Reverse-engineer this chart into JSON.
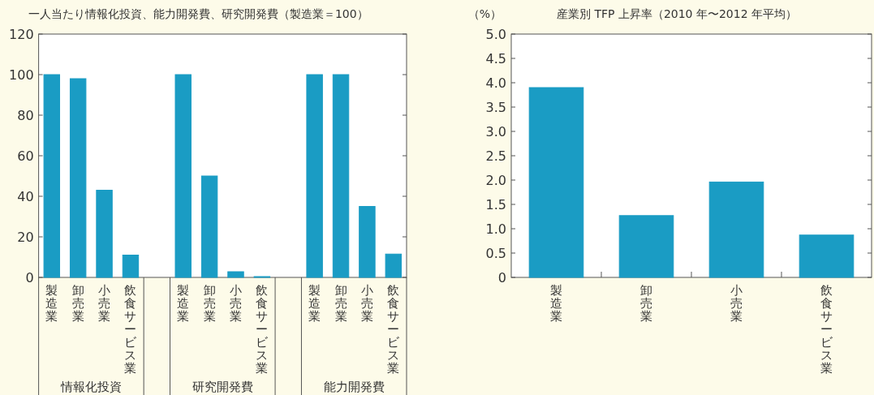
{
  "chart_data": [
    {
      "type": "bar",
      "title": "一人当たり情報化投資、能力開発費、研究開発費（製造業＝100）",
      "categories": [
        "製造業",
        "卸売業",
        "小売業",
        "飲食サービス業",
        null,
        "製造業",
        "卸売業",
        "小売業",
        "飲食サービス業",
        null,
        "製造業",
        "卸売業",
        "小売業",
        "飲食サービス業"
      ],
      "values": [
        100,
        98,
        43,
        11,
        null,
        100,
        50,
        2.8,
        0.4,
        null,
        100,
        100,
        35,
        11.5
      ],
      "color": "#1a9cc4",
      "ylim": [
        0,
        120
      ],
      "yticks": [
        0,
        20,
        40,
        60,
        80,
        100,
        120
      ],
      "grid": false,
      "annotations": [
        "情報化投資",
        "研究開発費",
        "能力開発費"
      ]
    },
    {
      "type": "bar",
      "title": "産業別 TFP 上昇率（2010 年〜2012 年平均）",
      "ylabel": "（%）",
      "categories": [
        "製造業",
        "卸売業",
        "小売業",
        "飲食サービス業"
      ],
      "values": [
        3.9,
        1.27,
        1.96,
        0.87
      ],
      "color": "#1a9cc4",
      "ylim": [
        0,
        5
      ],
      "grid": false,
      "yticks": [
        0,
        {
          "value": 0.5,
          "label": "0.5"
        },
        {
          "value": 1,
          "label": "1.0"
        },
        {
          "value": 1.5,
          "label": "1.5"
        },
        {
          "value": 2,
          "label": "2.0"
        },
        {
          "value": 2.5,
          "label": "2.5"
        },
        {
          "value": 3,
          "label": "3.0"
        },
        {
          "value": 3.5,
          "label": "3.5"
        },
        {
          "value": 4,
          "label": "4.0"
        },
        {
          "value": 4.5,
          "label": "4.5"
        },
        {
          "value": 5,
          "label": "5.0"
        }
      ]
    }
  ]
}
